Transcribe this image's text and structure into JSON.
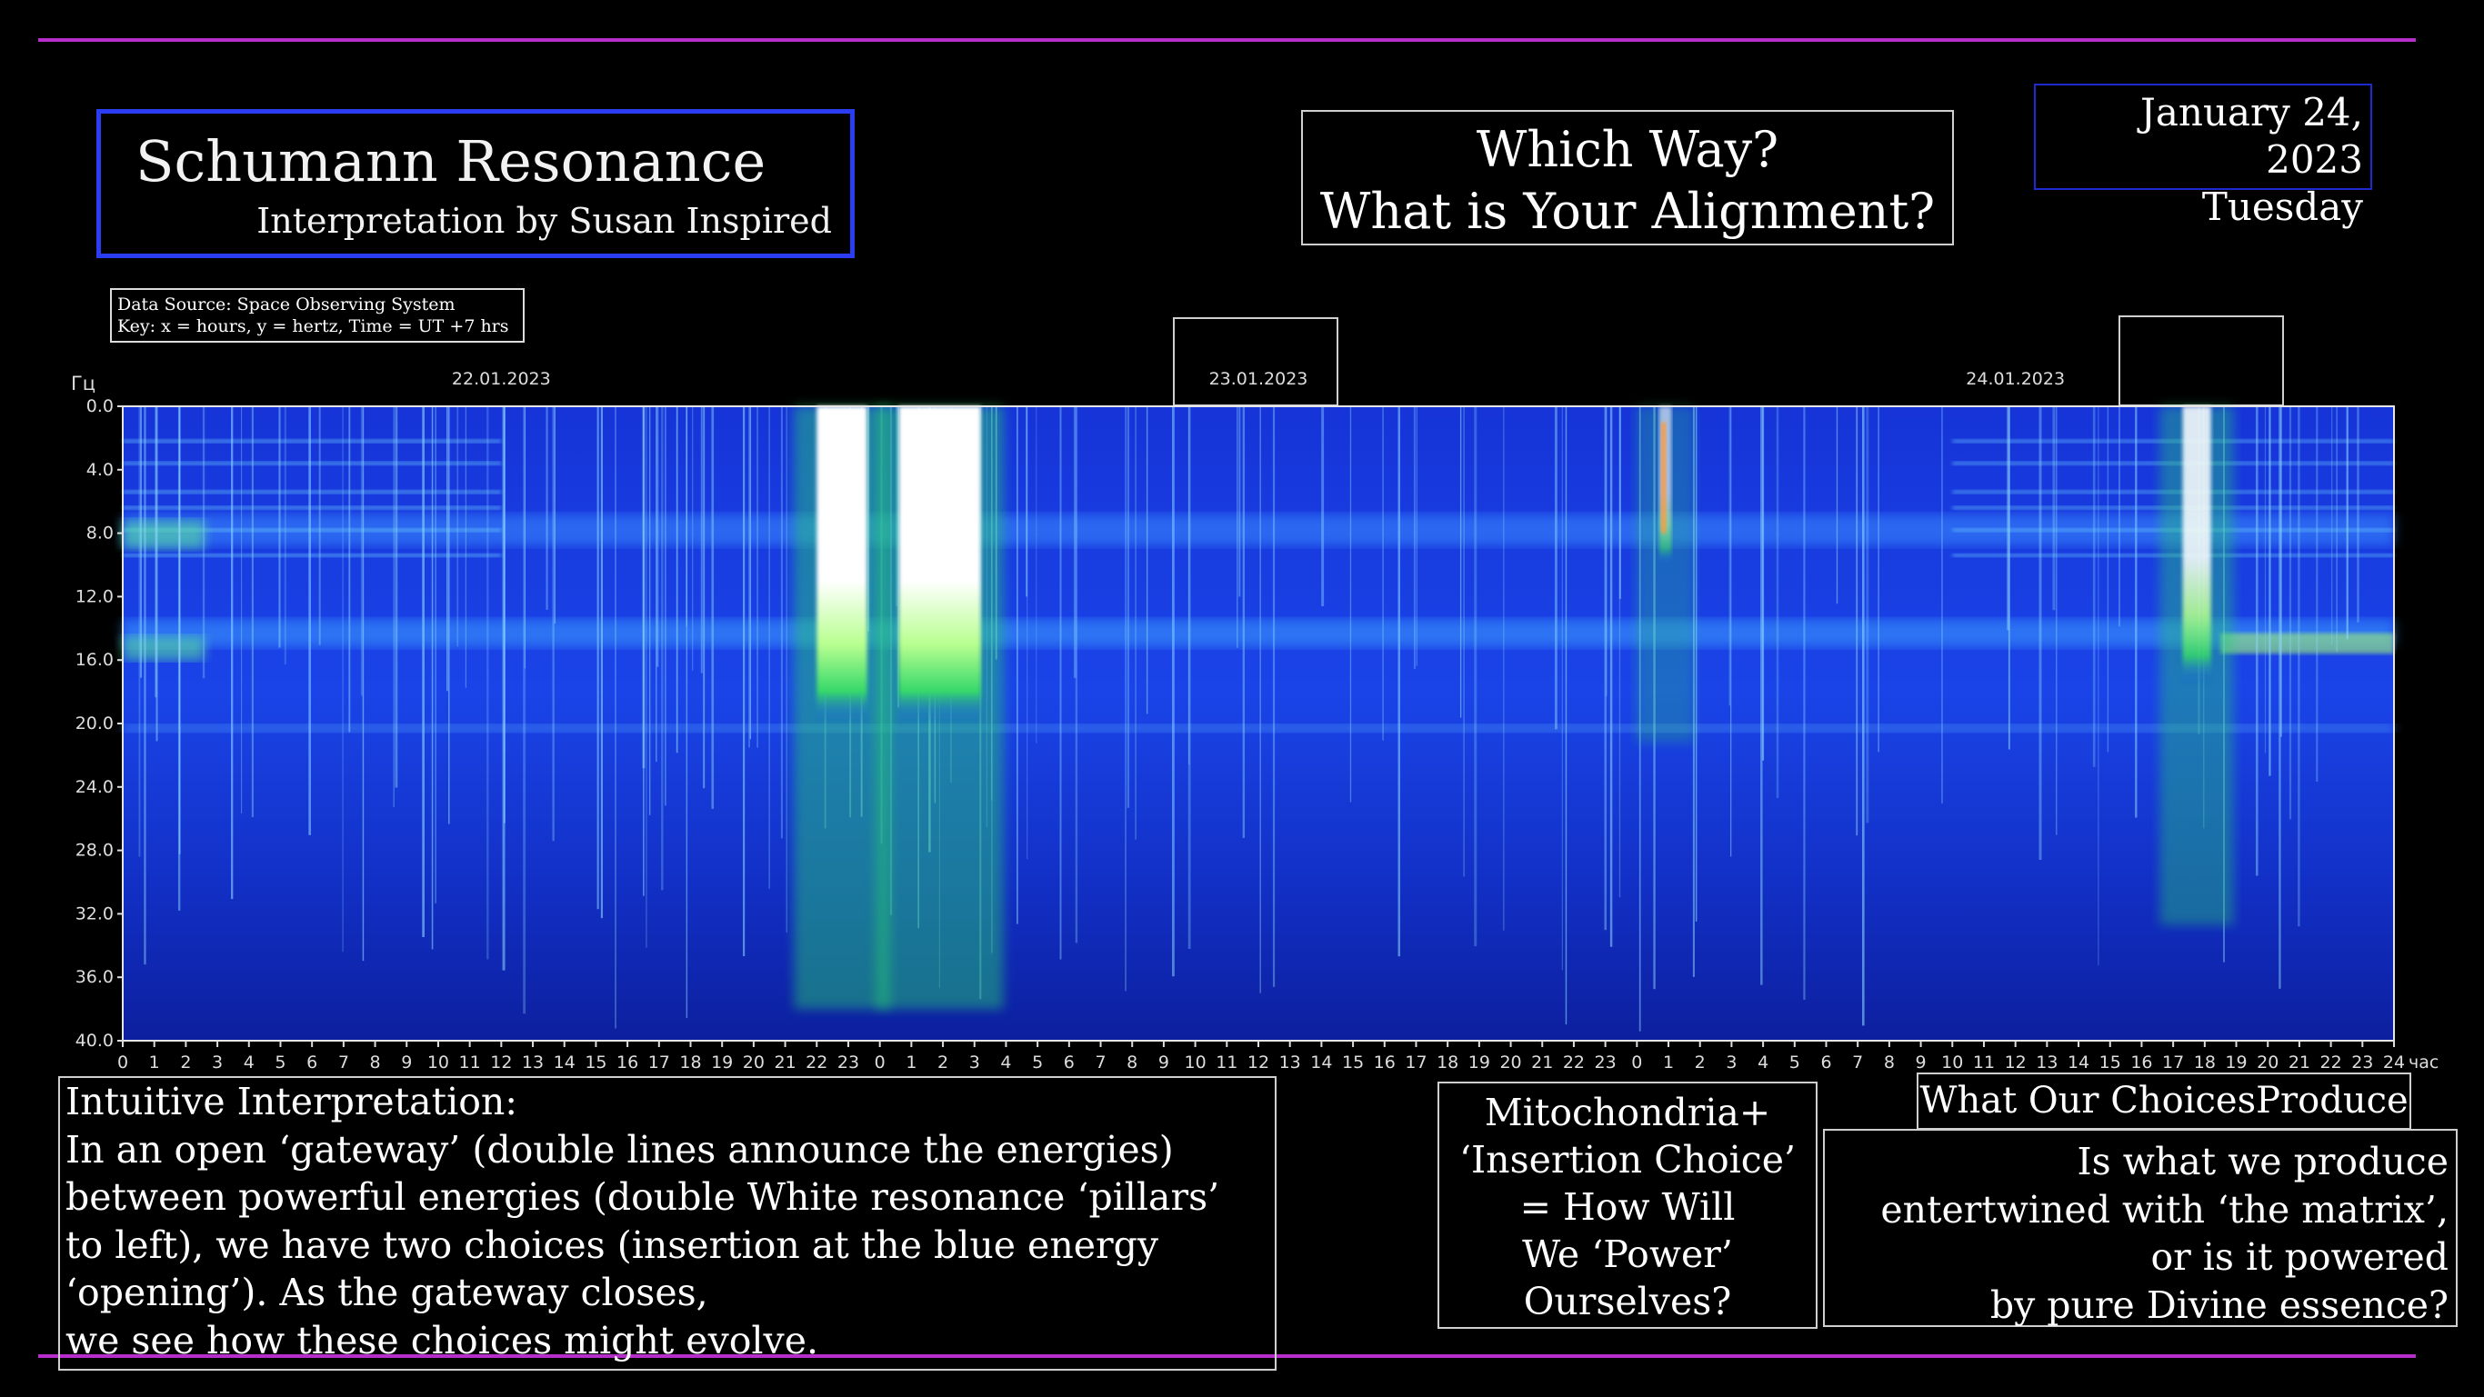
{
  "header": {
    "title": "Schumann Resonance",
    "subtitle": "Interpretation by Susan Inspired",
    "source_line1": "Data Source: Space Observing System",
    "source_line2": "Key: x = hours, y = hertz, Time = UT +7 hrs",
    "headline_line1": "Which Way?",
    "headline_line2": "What is Your Alignment?",
    "date": "January 24, 2023",
    "weekday": "Tuesday"
  },
  "chart_data": {
    "type": "heatmap",
    "ylabel": "Гц",
    "xunit": "час",
    "ylim": [
      0,
      40
    ],
    "yticks": [
      "0.0",
      "4.0",
      "8.0",
      "12.0",
      "16.0",
      "20.0",
      "24.0",
      "28.0",
      "32.0",
      "36.0",
      "40.0"
    ],
    "xticks": [
      "0",
      "1",
      "2",
      "3",
      "4",
      "5",
      "6",
      "7",
      "8",
      "9",
      "10",
      "11",
      "12",
      "13",
      "14",
      "15",
      "16",
      "17",
      "18",
      "19",
      "20",
      "21",
      "22",
      "23",
      "0",
      "1",
      "2",
      "3",
      "4",
      "5",
      "6",
      "7",
      "8",
      "9",
      "10",
      "11",
      "12",
      "13",
      "14",
      "15",
      "16",
      "17",
      "18",
      "19",
      "20",
      "21",
      "22",
      "23",
      "0",
      "1",
      "2",
      "3",
      "4",
      "5",
      "6",
      "7",
      "8",
      "9",
      "10",
      "11",
      "12",
      "13",
      "14",
      "15",
      "16",
      "17",
      "18",
      "19",
      "20",
      "21",
      "22",
      "23",
      "24"
    ],
    "day_labels": [
      "22.01.2023",
      "23.01.2023",
      "24.01.2023"
    ],
    "resonance_bands_hz": [
      7.8,
      14.3,
      20.3
    ],
    "bursts_hours": [
      {
        "start": 22.0,
        "end": 23.6,
        "intensity": 1.0,
        "max_hz": 16
      },
      {
        "start": 24.6,
        "end": 27.2,
        "intensity": 1.0,
        "max_hz": 16
      },
      {
        "start": 48.7,
        "end": 49.1,
        "intensity": 0.6,
        "max_hz": 8
      },
      {
        "start": 65.3,
        "end": 66.2,
        "intensity": 0.85,
        "max_hz": 14
      }
    ],
    "colors": {
      "background": "#0a1aa8",
      "low": "#1230e0",
      "mid": "#3fe070",
      "high": "#ffffff"
    }
  },
  "interpretation": {
    "title": "Intuitive Interpretation:",
    "line1": "In an open ‘gateway’ (double lines announce the energies)",
    "line2": "between powerful energies (double White resonance ‘pillars’",
    "line3": "to left), we have two choices (insertion at the blue energy",
    "line4": "‘opening’). As the gateway closes,",
    "line5": "we see how these choices might evolve."
  },
  "mitochondria": {
    "line1": "Mitochondria+",
    "line2": "‘Insertion Choice’",
    "line3": "= How Will",
    "line4": "We ‘Power’",
    "line5": "Ourselves?"
  },
  "produce": {
    "title": "What Our ChoicesProduce",
    "line1": "Is what we produce",
    "line2": "entertwined with ‘the matrix’,",
    "line3": "or is it powered",
    "line4": "by pure Divine essence?"
  }
}
